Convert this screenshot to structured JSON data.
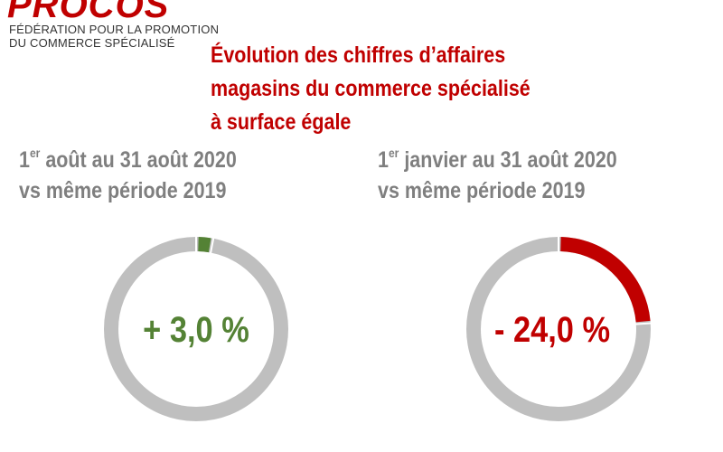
{
  "header": {
    "logo_text": "PROCOS",
    "org_line1": "FÉDÉRATION POUR LA PROMOTION",
    "org_line2": "DU COMMERCE SPÉCIALISÉ"
  },
  "title": {
    "line1": "Évolution des chiffres d’affaires",
    "line2": "magasins du commerce spécialisé",
    "line3": "à surface égale"
  },
  "colors": {
    "brand": "#c00000",
    "track": "#bfbfbf",
    "positive": "#548235",
    "negative": "#c00000",
    "subtitle": "#7f7f7f"
  },
  "chart_data": [
    {
      "type": "pie",
      "subtitle": {
        "ordinal": "1",
        "ordinal_suffix": "er",
        "line1_rest": " août au 31 août 2020",
        "line2": "vs même période 2019"
      },
      "value": 3.0,
      "value_label": "+ 3,0 %",
      "color": "#548235"
    },
    {
      "type": "pie",
      "subtitle": {
        "ordinal": "1",
        "ordinal_suffix": "er",
        "line1_rest": " janvier au 31 août 2020",
        "line2": "vs même période 2019"
      },
      "value": -24.0,
      "value_label": "- 24,0 %",
      "color": "#c00000"
    }
  ]
}
